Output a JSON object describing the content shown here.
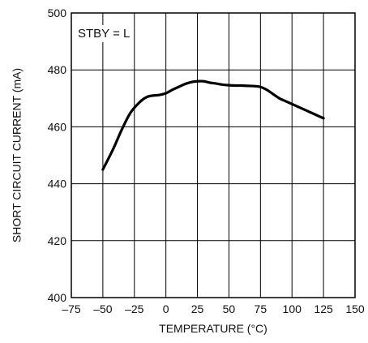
{
  "chart_data": {
    "type": "line",
    "title": "",
    "xlabel": "TEMPERATURE (°C)",
    "ylabel": "SHORT CIRCUIT CURRENT (mA)",
    "xlim": [
      -75,
      150
    ],
    "ylim": [
      400,
      500
    ],
    "x_ticks": [
      -75,
      -50,
      -25,
      0,
      25,
      50,
      75,
      100,
      125,
      150
    ],
    "x_tick_labels": [
      "–75",
      "–50",
      "–25",
      "0",
      "25",
      "50",
      "75",
      "100",
      "125",
      "150"
    ],
    "y_ticks": [
      400,
      420,
      440,
      460,
      480,
      500
    ],
    "y_tick_labels": [
      "400",
      "420",
      "440",
      "460",
      "480",
      "500"
    ],
    "grid": true,
    "annotation": "STBY = L",
    "line_color": "#000000",
    "series": [
      {
        "x": [
          -50,
          -42,
          -35,
          -28,
          -20,
          -15,
          -10,
          -5,
          0,
          5,
          10,
          15,
          20,
          25,
          30,
          35,
          40,
          45,
          50,
          55,
          60,
          65,
          70,
          75,
          80,
          85,
          90,
          95,
          100,
          105,
          110,
          115,
          120,
          125
        ],
        "y": [
          445,
          452,
          459,
          465,
          469,
          470.5,
          471,
          471.2,
          471.8,
          473,
          474,
          475,
          475.7,
          476,
          476,
          475.5,
          475.2,
          474.8,
          474.6,
          474.5,
          474.5,
          474.4,
          474.3,
          474,
          473,
          471.5,
          470,
          469,
          468,
          467,
          466,
          465,
          464,
          463
        ]
      }
    ]
  }
}
